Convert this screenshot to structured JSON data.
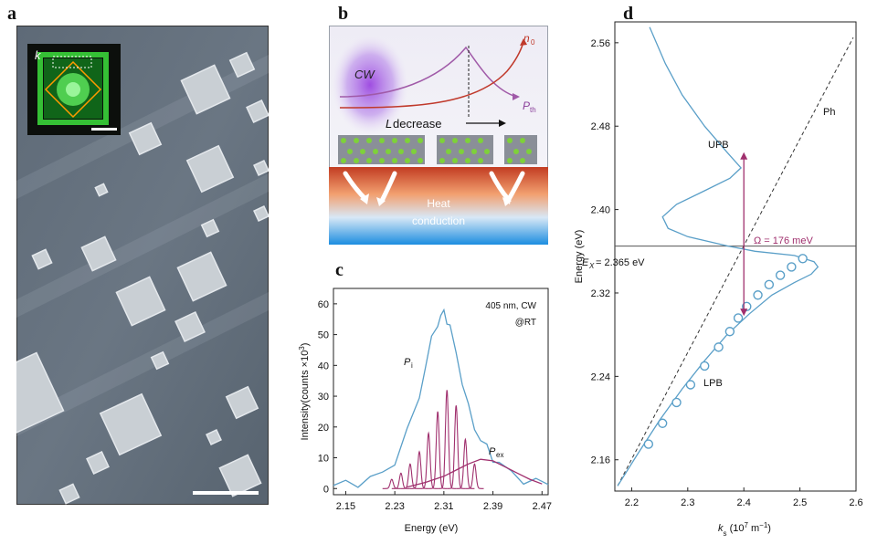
{
  "figure": {
    "panel_a": {
      "letter": "a",
      "inset_label": "k"
    },
    "panel_b": {
      "letter": "b",
      "cw_label": "CW",
      "n0_label": "n",
      "n0_sub": "0",
      "pth_label": "P",
      "pth_sub": "th",
      "l_decrease_italic": "L",
      "l_decrease_text": " decrease",
      "heat_line1": "Heat",
      "heat_line2": "conduction"
    },
    "panel_c": {
      "letter": "c",
      "annotation_line1": "405 nm, CW",
      "annotation_line2": "@RT",
      "peak_label_p": "P",
      "peak_label_p_sub": "i",
      "peak_label_pex": "P",
      "peak_label_pex_sub": "ex",
      "ylabel": "Intensity(counts ×10",
      "ylabel_sup": "3",
      "ylabel_end": ")",
      "xlabel": "Energy (eV)",
      "yticks": [
        "0",
        "10",
        "20",
        "30",
        "40",
        "50",
        "60"
      ],
      "xticks": [
        "2.15",
        "2.23",
        "2.31",
        "2.39",
        "2.47"
      ],
      "colors": {
        "total": "#5a9fc8",
        "modes": "#a0306e",
        "exciton": "#a0306e"
      }
    },
    "panel_d": {
      "letter": "d",
      "ylabel": "Energy (eV)",
      "xlabel_k": "k",
      "xlabel_sub": "s",
      "xlabel_rest": " (10",
      "xlabel_sup": "7",
      "xlabel_end": " m",
      "xlabel_sup2": "−1",
      "xlabel_close": ")",
      "yticks": [
        "2.16",
        "2.24",
        "2.32",
        "2.40",
        "2.48",
        "2.56"
      ],
      "xticks": [
        "2.2",
        "2.3",
        "2.4",
        "2.5",
        "2.6"
      ],
      "upb_label": "UPB",
      "lpb_label": "LPB",
      "ph_label": "Ph",
      "ex_label": "E",
      "ex_sub": "X",
      "ex_value": "= 2.365 eV",
      "omega_label": "Ω = 176 meV",
      "colors": {
        "polariton": "#5a9fc8",
        "photon": "#333333",
        "rabi": "#a0306e"
      }
    }
  },
  "chart_data": [
    {
      "type": "line",
      "panel": "c",
      "xlabel": "Energy (eV)",
      "ylabel": "Intensity(counts ×10³)",
      "xlim": [
        2.13,
        2.48
      ],
      "ylim": [
        -2,
        65
      ],
      "series": [
        {
          "name": "total",
          "x": [
            2.13,
            2.15,
            2.17,
            2.19,
            2.21,
            2.23,
            2.25,
            2.27,
            2.28,
            2.29,
            2.3,
            2.305,
            2.31,
            2.315,
            2.32,
            2.33,
            2.34,
            2.35,
            2.36,
            2.37,
            2.38,
            2.39,
            2.4,
            2.42,
            2.44,
            2.46,
            2.48
          ],
          "y": [
            1,
            1.5,
            2,
            3,
            5,
            9,
            18,
            30,
            40,
            48,
            54,
            56,
            57,
            55,
            52,
            44,
            35,
            26,
            20,
            16,
            13,
            10,
            8,
            5,
            3,
            2,
            1.5
          ]
        },
        {
          "name": "P_ex",
          "x": [
            2.25,
            2.28,
            2.31,
            2.33,
            2.35,
            2.37,
            2.39,
            2.41,
            2.43,
            2.45,
            2.47
          ],
          "y": [
            0.5,
            2,
            4,
            6,
            8,
            9.5,
            9,
            7,
            5,
            3,
            1.5
          ]
        }
      ],
      "modes_center": [
        2.225,
        2.24,
        2.255,
        2.27,
        2.285,
        2.3,
        2.315,
        2.33,
        2.345,
        2.36
      ],
      "modes_height": [
        3,
        5,
        8,
        12,
        18,
        25,
        32,
        27,
        16,
        8
      ]
    },
    {
      "type": "line",
      "panel": "d",
      "xlabel": "k_s (10^7 m^-1)",
      "ylabel": "Energy (eV)",
      "xlim": [
        2.17,
        2.6
      ],
      "ylim": [
        2.13,
        2.58
      ],
      "exciton_energy": 2.365,
      "rabi_splitting_meV": 176,
      "lpb_points": {
        "x": [
          2.23,
          2.255,
          2.28,
          2.305,
          2.33,
          2.355,
          2.375,
          2.39,
          2.405,
          2.425,
          2.445,
          2.465,
          2.485,
          2.505
        ],
        "y": [
          2.175,
          2.195,
          2.215,
          2.232,
          2.25,
          2.268,
          2.283,
          2.296,
          2.307,
          2.318,
          2.328,
          2.337,
          2.345,
          2.353
        ]
      }
    }
  ]
}
